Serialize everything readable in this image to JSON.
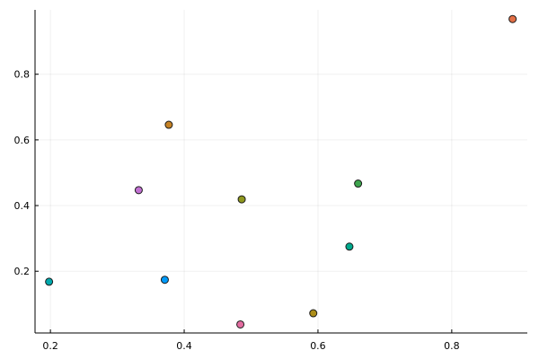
{
  "chart_data": {
    "type": "scatter",
    "title": "",
    "xlabel": "",
    "ylabel": "",
    "grid": true,
    "legend": "none",
    "xlim": [
      0.177,
      0.913
    ],
    "ylim": [
      0.012,
      0.996
    ],
    "x_ticks": [
      {
        "value": 0.2,
        "label": "0.2"
      },
      {
        "value": 0.4,
        "label": "0.4"
      },
      {
        "value": 0.6,
        "label": "0.6"
      },
      {
        "value": 0.8,
        "label": "0.8"
      }
    ],
    "y_ticks": [
      {
        "value": 0.2,
        "label": "0.2"
      },
      {
        "value": 0.4,
        "label": "0.4"
      },
      {
        "value": 0.6,
        "label": "0.6"
      },
      {
        "value": 0.8,
        "label": "0.8"
      }
    ],
    "points": [
      {
        "x": 0.891,
        "y": 0.968,
        "color": "#e26f46"
      },
      {
        "x": 0.377,
        "y": 0.646,
        "color": "#c68225"
      },
      {
        "x": 0.66,
        "y": 0.467,
        "color": "#3da44d"
      },
      {
        "x": 0.332,
        "y": 0.447,
        "color": "#c271d2"
      },
      {
        "x": 0.486,
        "y": 0.419,
        "color": "#8e971e"
      },
      {
        "x": 0.647,
        "y": 0.275,
        "color": "#00a98d"
      },
      {
        "x": 0.371,
        "y": 0.174,
        "color": "#009af9"
      },
      {
        "x": 0.198,
        "y": 0.168,
        "color": "#00a9ad"
      },
      {
        "x": 0.593,
        "y": 0.072,
        "color": "#ac8d18"
      },
      {
        "x": 0.484,
        "y": 0.038,
        "color": "#e36ca0"
      }
    ]
  }
}
